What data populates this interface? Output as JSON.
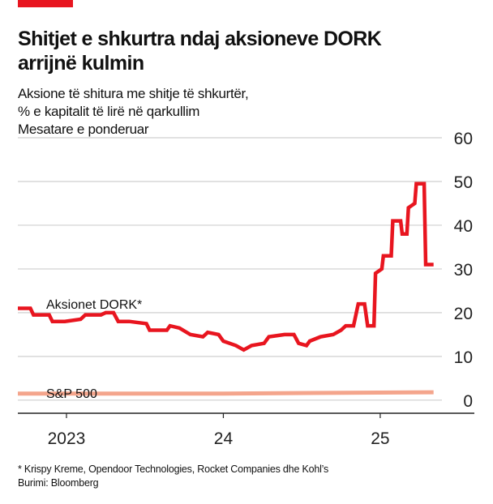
{
  "chart_data": {
    "type": "line",
    "title": [
      "Shitjet e shkurtra ndaj aksioneve DORK",
      "arrijnë kulmin"
    ],
    "subtitle": [
      "Aksione të shitura me shitje të shkurtër,",
      "% e kapitalit të lirë në qarkullim",
      "Mesatare e ponderuar"
    ],
    "footnote": "* Krispy Kreme, Opendoor Technologies, Rocket Companies dhe Kohl’s",
    "source": "Burimi: Bloomberg",
    "xlim": [
      2023.19,
      2026.1
    ],
    "xticks": [
      {
        "value": 2023.5,
        "label": "2023"
      },
      {
        "value": 2024.5,
        "label": "24"
      },
      {
        "value": 2025.5,
        "label": "25"
      }
    ],
    "ylim": [
      -3,
      62
    ],
    "yticks": [
      0,
      10,
      20,
      30,
      40,
      50,
      60
    ],
    "y_axis_side": "right",
    "grid": true,
    "series": [
      {
        "name": "Aksionet DORK*",
        "color": "#e8151f",
        "x": [
          2023.19,
          2023.27,
          2023.29,
          2023.39,
          2023.41,
          2023.49,
          2023.59,
          2023.62,
          2023.72,
          2023.75,
          2023.8,
          2023.83,
          2023.9,
          2024.01,
          2024.03,
          2024.14,
          2024.16,
          2024.22,
          2024.29,
          2024.37,
          2024.4,
          2024.47,
          2024.5,
          2024.58,
          2024.63,
          2024.68,
          2024.76,
          2024.79,
          2024.89,
          2024.95,
          2024.98,
          2025.03,
          2025.05,
          2025.12,
          2025.2,
          2025.25,
          2025.28,
          2025.33,
          2025.36,
          2025.4,
          2025.42,
          2025.46,
          2025.47,
          2025.51,
          2025.52,
          2025.57,
          2025.58,
          2025.63,
          2025.64,
          2025.67,
          2025.68,
          2025.72,
          2025.73,
          2025.78,
          2025.79,
          2025.84
        ],
        "values": [
          21,
          21,
          19.5,
          19.5,
          18,
          18,
          18.5,
          19.5,
          19.5,
          20,
          20,
          18,
          18,
          17.5,
          16,
          16,
          17,
          16.5,
          15,
          14.5,
          15.5,
          15,
          13.5,
          12.5,
          11.5,
          12.5,
          13,
          14.5,
          15,
          15,
          13,
          12.5,
          13.5,
          14.5,
          15,
          16,
          17,
          17,
          22,
          22,
          17,
          17,
          29,
          30,
          33,
          33,
          41,
          41,
          38,
          38,
          44,
          45,
          49.5,
          49.5,
          31,
          31
        ]
      },
      {
        "name": "S&P 500",
        "color": "#f4a58c",
        "x": [
          2023.19,
          2024.5,
          2025.84
        ],
        "values": [
          1.5,
          1.5,
          1.8
        ]
      }
    ]
  }
}
